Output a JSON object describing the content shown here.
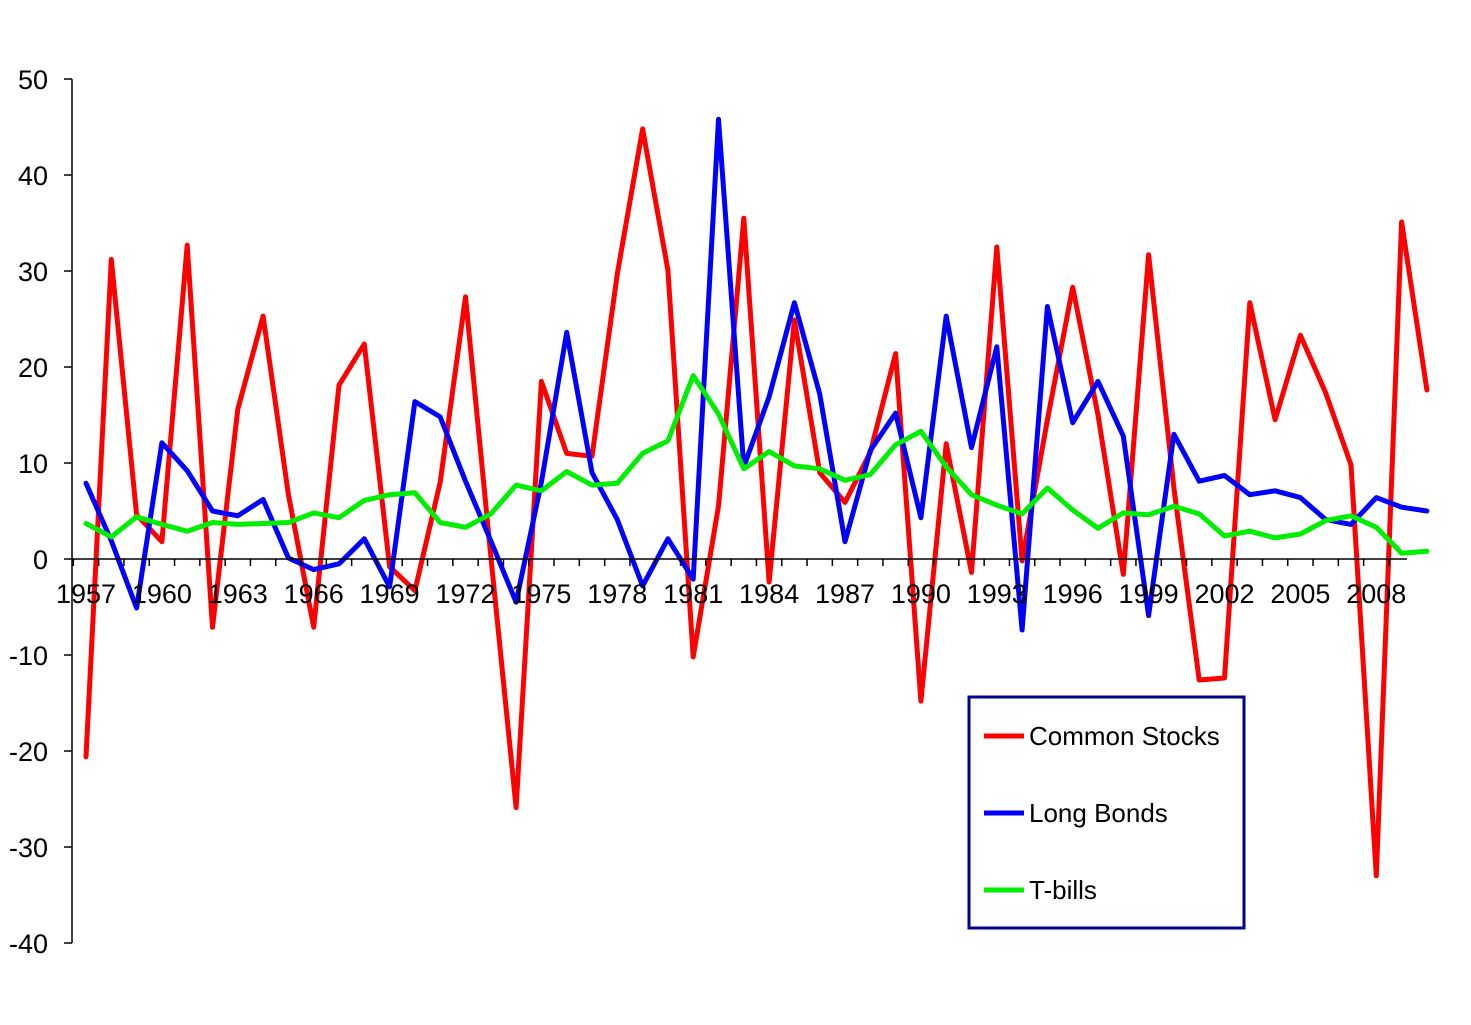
{
  "chart_data": {
    "type": "line",
    "title": "",
    "xlabel": "",
    "ylabel": "",
    "ylim": [
      -40,
      50
    ],
    "yticks": [
      -40,
      -30,
      -20,
      -10,
      0,
      10,
      20,
      30,
      40,
      50
    ],
    "x": [
      1957,
      1958,
      1959,
      1960,
      1961,
      1962,
      1963,
      1964,
      1965,
      1966,
      1967,
      1968,
      1969,
      1970,
      1971,
      1972,
      1973,
      1974,
      1975,
      1976,
      1977,
      1978,
      1979,
      1980,
      1981,
      1982,
      1983,
      1984,
      1985,
      1986,
      1987,
      1988,
      1989,
      1990,
      1991,
      1992,
      1993,
      1994,
      1995,
      1996,
      1997,
      1998,
      1999,
      2000,
      2001,
      2002,
      2003,
      2004,
      2005,
      2006,
      2007,
      2008,
      2009,
      2010
    ],
    "xtick_labels": [
      "1957",
      "1960",
      "1963",
      "1966",
      "1969",
      "1972",
      "1975",
      "1978",
      "1981",
      "1984",
      "1987",
      "1990",
      "1993",
      "1996",
      "1999",
      "2002",
      "2005",
      "2008"
    ],
    "grid": false,
    "legend_position": "bottom-right",
    "series": [
      {
        "name": "Common Stocks",
        "color": "#ff0000",
        "values": [
          -20.6,
          31.2,
          4.6,
          1.8,
          32.7,
          -7.1,
          15.6,
          25.3,
          6.7,
          -7.1,
          18.1,
          22.4,
          -0.8,
          -3.3,
          8.0,
          27.3,
          0.3,
          -25.9,
          18.5,
          11.0,
          10.7,
          29.7,
          44.8,
          30.1,
          -10.2,
          5.5,
          35.5,
          -2.4,
          24.9,
          9.0,
          5.9,
          11.1,
          21.4,
          -14.8,
          12.0,
          -1.4,
          32.5,
          -0.2,
          14.5,
          28.3,
          15.0,
          -1.6,
          31.7,
          7.4,
          -12.6,
          -12.4,
          26.7,
          14.5,
          23.3,
          17.3,
          9.8,
          -33.0,
          35.1,
          17.6
        ]
      },
      {
        "name": "Long Bonds",
        "color": "#0000ff",
        "values": [
          7.9,
          1.9,
          -5.1,
          12.1,
          9.2,
          5.0,
          4.5,
          6.2,
          0.1,
          -1.1,
          -0.5,
          2.1,
          -2.9,
          16.4,
          14.8,
          8.1,
          1.9,
          -4.5,
          8.0,
          23.6,
          9.0,
          4.1,
          -2.8,
          2.1,
          -2.1,
          45.8,
          9.6,
          16.9,
          26.7,
          17.2,
          1.8,
          11.3,
          15.2,
          4.3,
          25.3,
          11.6,
          22.1,
          -7.4,
          26.3,
          14.2,
          18.5,
          12.8,
          -5.9,
          13.0,
          8.1,
          8.7,
          6.7,
          7.1,
          6.4,
          4.1,
          3.6,
          6.4,
          5.4,
          5.0
        ]
      },
      {
        "name": "T-bills",
        "color": "#00ee00",
        "values": [
          3.7,
          2.3,
          4.4,
          3.6,
          2.9,
          3.8,
          3.6,
          3.7,
          3.8,
          4.8,
          4.3,
          6.1,
          6.7,
          6.9,
          3.8,
          3.3,
          4.7,
          7.7,
          7.1,
          9.1,
          7.7,
          7.9,
          11.0,
          12.3,
          19.1,
          15.1,
          9.4,
          11.2,
          9.7,
          9.4,
          8.2,
          8.8,
          11.9,
          13.3,
          9.6,
          6.7,
          5.6,
          4.7,
          7.4,
          5.1,
          3.2,
          4.8,
          4.6,
          5.5,
          4.7,
          2.4,
          2.9,
          2.2,
          2.6,
          4.0,
          4.5,
          3.3,
          0.6,
          0.8
        ]
      }
    ]
  }
}
